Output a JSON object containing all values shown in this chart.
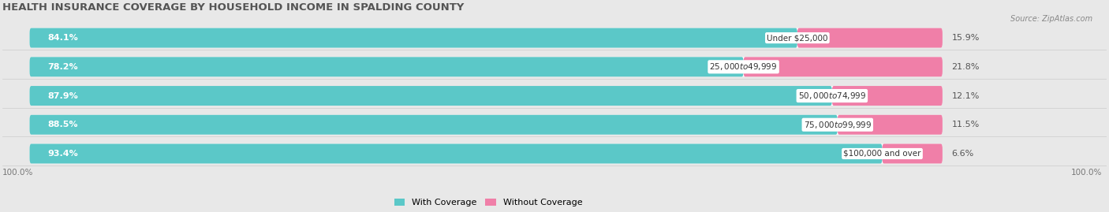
{
  "title": "HEALTH INSURANCE COVERAGE BY HOUSEHOLD INCOME IN SPALDING COUNTY",
  "source": "Source: ZipAtlas.com",
  "categories": [
    "Under $25,000",
    "$25,000 to $49,999",
    "$50,000 to $74,999",
    "$75,000 to $99,999",
    "$100,000 and over"
  ],
  "with_coverage": [
    84.1,
    78.2,
    87.9,
    88.5,
    93.4
  ],
  "without_coverage": [
    15.9,
    21.8,
    12.1,
    11.5,
    6.6
  ],
  "color_with": "#5bc8c8",
  "color_without": "#f07fa8",
  "bg_color": "#e8e8e8",
  "bar_bg_color": "#ffffff",
  "title_fontsize": 9.5,
  "label_fontsize": 8,
  "bar_height": 0.68,
  "total_bar_width": 100,
  "legend_label_with": "With Coverage",
  "legend_label_without": "Without Coverage"
}
